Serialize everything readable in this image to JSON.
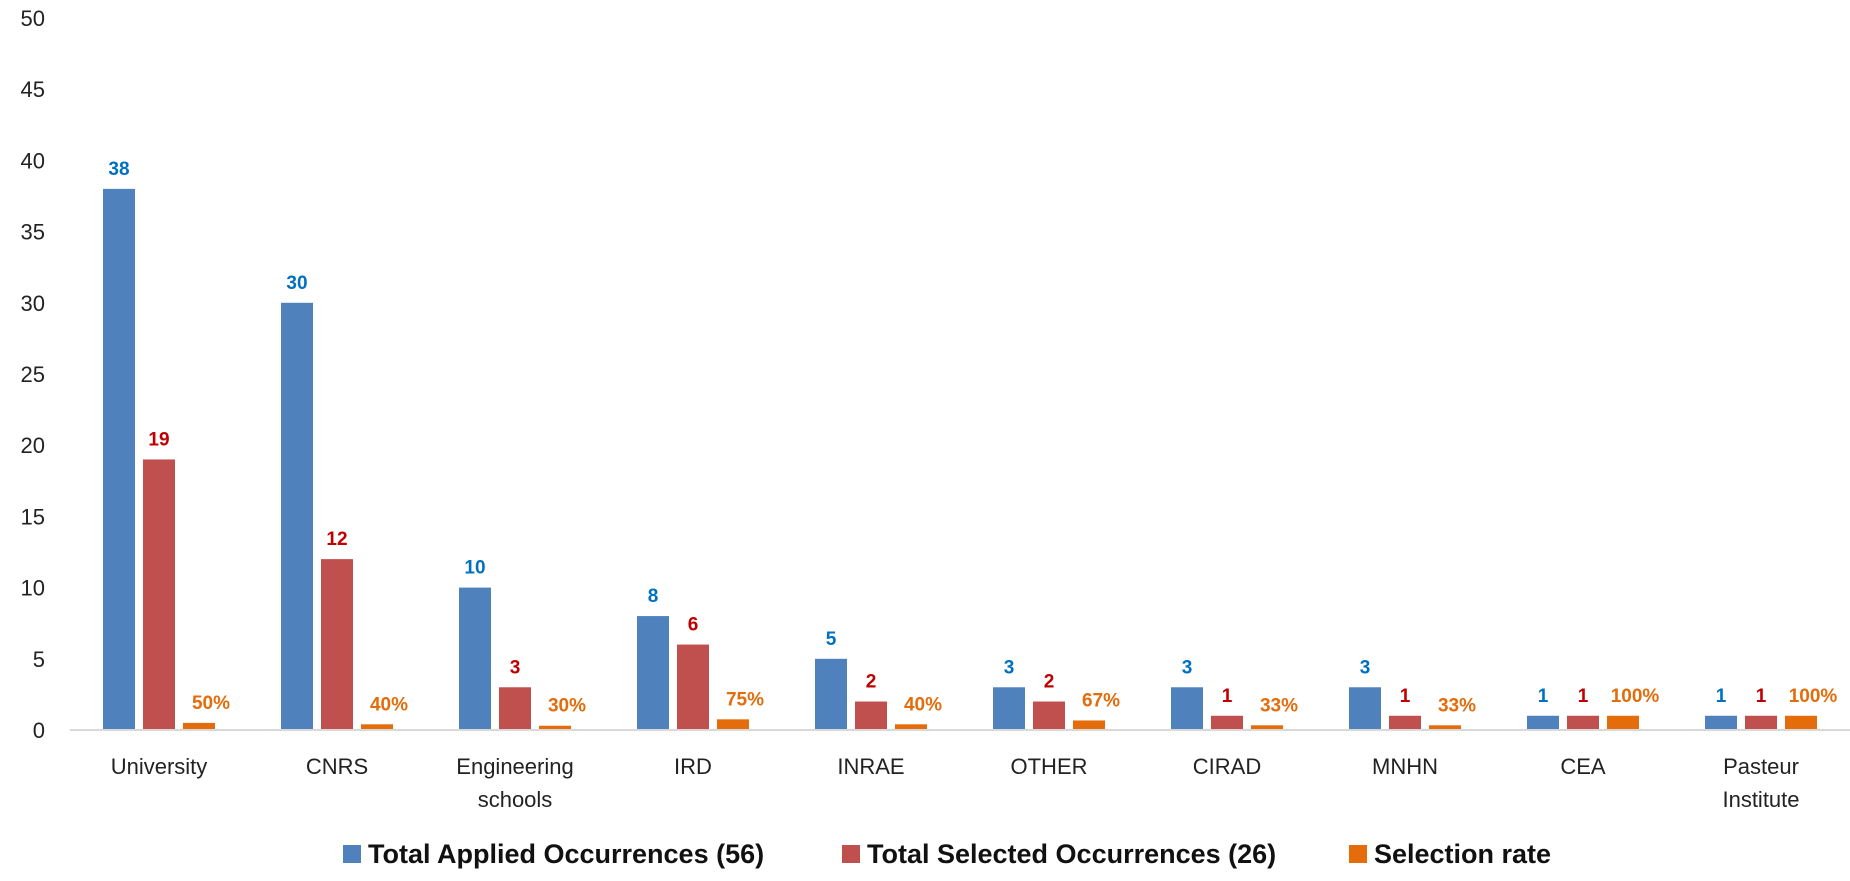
{
  "chart_data": {
    "type": "bar",
    "title": "",
    "xlabel": "",
    "ylabel": "",
    "ylim": [
      0,
      50
    ],
    "yticks": [
      "0",
      "5",
      "10",
      "15",
      "20",
      "25",
      "30",
      "35",
      "40",
      "45",
      "50"
    ],
    "grid": false,
    "legend_position": "bottom",
    "categories": [
      [
        "University"
      ],
      [
        "CNRS"
      ],
      [
        "Engineering",
        "schools"
      ],
      [
        "IRD"
      ],
      [
        "INRAE"
      ],
      [
        "OTHER"
      ],
      [
        "CIRAD"
      ],
      [
        "MNHN"
      ],
      [
        "CEA"
      ],
      [
        "Pasteur",
        "Institute"
      ]
    ],
    "series": [
      {
        "name": "Total Applied Occurrences (56)",
        "color": "#4F81BD",
        "label_color": "#0070C0",
        "values": [
          38,
          30,
          10,
          8,
          5,
          3,
          3,
          3,
          1,
          1
        ],
        "labels": [
          "38",
          "30",
          "10",
          "8",
          "5",
          "3",
          "3",
          "3",
          "1",
          "1"
        ]
      },
      {
        "name": "Total Selected Occurrences (26)",
        "color": "#C0504D",
        "label_color": "#C00000",
        "values": [
          19,
          12,
          3,
          6,
          2,
          2,
          1,
          1,
          1,
          1
        ],
        "labels": [
          "19",
          "12",
          "3",
          "6",
          "2",
          "2",
          "1",
          "1",
          "1",
          "1"
        ]
      },
      {
        "name": "Selection rate",
        "color": "#E46C0A",
        "label_color": "#E46C0A",
        "values": [
          0.5,
          0.4,
          0.3,
          0.75,
          0.4,
          0.67,
          0.33,
          0.33,
          1.0,
          1.0
        ],
        "labels": [
          "50%",
          "40%",
          "30%",
          "75%",
          "40%",
          "67%",
          "33%",
          "33%",
          "100%",
          "100%"
        ]
      }
    ]
  }
}
